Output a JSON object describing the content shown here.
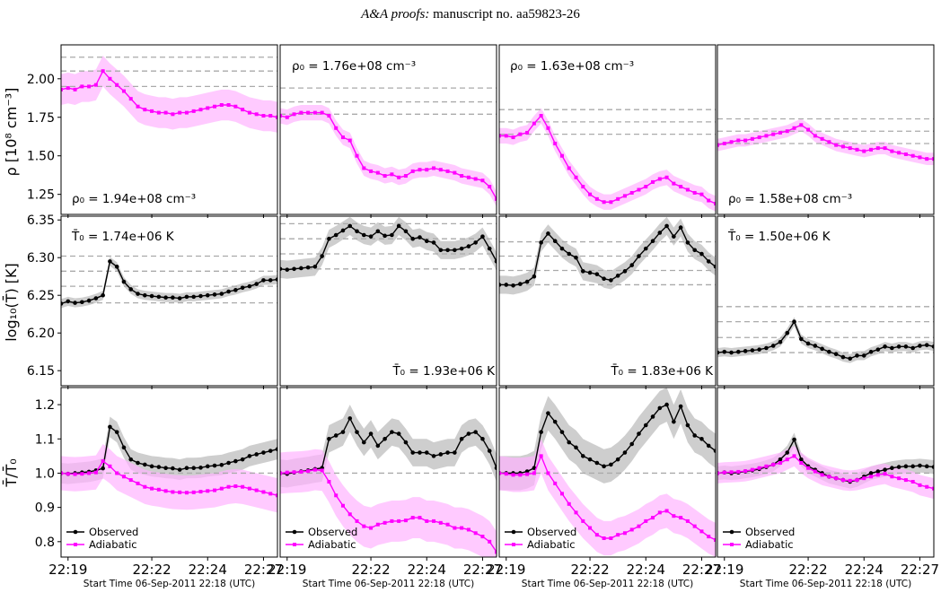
{
  "header": {
    "journal": "A&A proofs:",
    "manuscript": "manuscript no. aa59823-26"
  },
  "axes": {
    "ylabels": [
      "ρ [10⁸ cm⁻³]",
      "log₁₀(T̄) [K]",
      "T̄/T̄₀"
    ],
    "row_ticks": [
      {
        "values": [
          1.25,
          1.5,
          1.75,
          2.0
        ],
        "labels": [
          "1.25",
          "1.50",
          "1.75",
          "2.00"
        ]
      },
      {
        "values": [
          6.15,
          6.2,
          6.25,
          6.3,
          6.35
        ],
        "labels": [
          "6.15",
          "6.20",
          "6.25",
          "6.30",
          "6.35"
        ]
      },
      {
        "values": [
          0.8,
          0.9,
          1.0,
          1.1,
          1.2
        ],
        "labels": [
          "0.8",
          "0.9",
          "1.0",
          "1.1",
          "1.2"
        ]
      }
    ],
    "x_ticks": [
      "22:19",
      "22:22",
      "22:24",
      "22:27"
    ],
    "xlabel": "Start Time 06-Sep-2011 22:18 (UTC)"
  },
  "legend": {
    "observed": "Observed",
    "adiabatic": "Adiabatic"
  },
  "colors": {
    "observed": "#000000",
    "adiabatic": "#ff00ff",
    "obs_band": "#bdbdbd",
    "adi_band": "#ffb3ff",
    "dashed": "#aaaaaa"
  },
  "annotations": {
    "rho": [
      "ρ₀ = 1.94e+08 cm⁻³",
      "ρ₀ = 1.76e+08 cm⁻³",
      "ρ₀ = 1.63e+08 cm⁻³",
      "ρ₀ = 1.58e+08 cm⁻³"
    ],
    "temp": [
      "T̄₀ = 1.74e+06 K",
      "T̄₀ = 1.93e+06 K",
      "T̄₀ = 1.83e+06 K",
      "T̄₀ = 1.50e+06 K"
    ]
  },
  "chart_data": [
    {
      "type": "line",
      "panel": "density-col1",
      "ylim": [
        1.12,
        2.22
      ],
      "series": [
        {
          "values": [
            1.93,
            1.94,
            1.93,
            1.95,
            1.95,
            1.96,
            2.05,
            2.0,
            1.96,
            1.92,
            1.87,
            1.82,
            1.8,
            1.79,
            1.78,
            1.78,
            1.77,
            1.78,
            1.78,
            1.79,
            1.8,
            1.81,
            1.82,
            1.83,
            1.83,
            1.82,
            1.8,
            1.78,
            1.77,
            1.76,
            1.76,
            1.75
          ],
          "band": 0.1
        }
      ],
      "hlines": [
        1.95,
        2.05,
        2.14
      ]
    },
    {
      "type": "line",
      "panel": "density-col2",
      "ylim": [
        1.12,
        2.22
      ],
      "series": [
        {
          "values": [
            1.76,
            1.75,
            1.77,
            1.78,
            1.78,
            1.78,
            1.78,
            1.76,
            1.68,
            1.62,
            1.6,
            1.5,
            1.42,
            1.4,
            1.39,
            1.37,
            1.38,
            1.36,
            1.37,
            1.4,
            1.41,
            1.41,
            1.42,
            1.41,
            1.4,
            1.39,
            1.37,
            1.36,
            1.35,
            1.34,
            1.3,
            1.22
          ],
          "band": 0.05
        }
      ],
      "hlines": [
        1.77,
        1.85,
        1.94
      ]
    },
    {
      "type": "line",
      "panel": "density-col3",
      "ylim": [
        1.12,
        2.22
      ],
      "series": [
        {
          "values": [
            1.63,
            1.63,
            1.62,
            1.64,
            1.65,
            1.71,
            1.76,
            1.68,
            1.58,
            1.5,
            1.42,
            1.36,
            1.3,
            1.25,
            1.22,
            1.2,
            1.2,
            1.22,
            1.24,
            1.26,
            1.28,
            1.3,
            1.33,
            1.35,
            1.36,
            1.32,
            1.3,
            1.28,
            1.26,
            1.25,
            1.21,
            1.19
          ],
          "band": 0.05
        }
      ],
      "hlines": [
        1.64,
        1.72,
        1.8
      ]
    },
    {
      "type": "line",
      "panel": "density-col4",
      "ylim": [
        1.12,
        2.22
      ],
      "series": [
        {
          "values": [
            1.57,
            1.58,
            1.59,
            1.6,
            1.6,
            1.61,
            1.62,
            1.63,
            1.64,
            1.65,
            1.66,
            1.68,
            1.7,
            1.67,
            1.63,
            1.61,
            1.59,
            1.57,
            1.56,
            1.55,
            1.54,
            1.53,
            1.54,
            1.55,
            1.55,
            1.53,
            1.52,
            1.51,
            1.5,
            1.49,
            1.48,
            1.48
          ],
          "band": 0.04
        }
      ],
      "hlines": [
        1.58,
        1.66,
        1.74
      ]
    },
    {
      "type": "line",
      "panel": "temperature-col1",
      "ylim": [
        6.13,
        6.355
      ],
      "series": [
        {
          "values": [
            6.239,
            6.242,
            6.24,
            6.241,
            6.243,
            6.246,
            6.25,
            6.295,
            6.288,
            6.268,
            6.258,
            6.252,
            6.25,
            6.249,
            6.248,
            6.247,
            6.247,
            6.246,
            6.248,
            6.248,
            6.249,
            6.25,
            6.251,
            6.252,
            6.255,
            6.257,
            6.26,
            6.262,
            6.265,
            6.27,
            6.27,
            6.271
          ],
          "band": 0.006
        }
      ],
      "hlines": [
        6.24,
        6.262,
        6.282,
        6.302
      ]
    },
    {
      "type": "line",
      "panel": "temperature-col2",
      "ylim": [
        6.13,
        6.355
      ],
      "series": [
        {
          "values": [
            6.285,
            6.284,
            6.285,
            6.286,
            6.287,
            6.288,
            6.302,
            6.325,
            6.33,
            6.336,
            6.342,
            6.335,
            6.33,
            6.328,
            6.335,
            6.329,
            6.33,
            6.342,
            6.335,
            6.325,
            6.327,
            6.322,
            6.32,
            6.31,
            6.31,
            6.31,
            6.312,
            6.315,
            6.32,
            6.328,
            6.312,
            6.295
          ],
          "band": 0.012
        }
      ],
      "hlines": [
        6.285,
        6.305,
        6.325,
        6.345
      ]
    },
    {
      "type": "line",
      "panel": "temperature-col3",
      "ylim": [
        6.13,
        6.355
      ],
      "series": [
        {
          "values": [
            6.264,
            6.264,
            6.263,
            6.265,
            6.268,
            6.275,
            6.32,
            6.332,
            6.322,
            6.312,
            6.305,
            6.3,
            6.282,
            6.28,
            6.278,
            6.272,
            6.27,
            6.276,
            6.282,
            6.29,
            6.302,
            6.312,
            6.322,
            6.333,
            6.342,
            6.328,
            6.34,
            6.32,
            6.31,
            6.305,
            6.295,
            6.288
          ],
          "band": 0.012
        }
      ],
      "hlines": [
        6.264,
        6.283,
        6.302,
        6.321
      ]
    },
    {
      "type": "line",
      "panel": "temperature-col4",
      "ylim": [
        6.13,
        6.355
      ],
      "series": [
        {
          "values": [
            6.174,
            6.175,
            6.174,
            6.175,
            6.176,
            6.177,
            6.178,
            6.18,
            6.183,
            6.188,
            6.2,
            6.215,
            6.192,
            6.186,
            6.183,
            6.179,
            6.175,
            6.172,
            6.168,
            6.166,
            6.17,
            6.17,
            6.175,
            6.178,
            6.182,
            6.18,
            6.182,
            6.182,
            6.18,
            6.183,
            6.184,
            6.182
          ],
          "band": 0.006
        }
      ],
      "hlines": [
        6.174,
        6.194,
        6.215,
        6.235
      ]
    },
    {
      "type": "line",
      "panel": "ratio-col1",
      "ylim": [
        0.755,
        1.25
      ],
      "series": [
        {
          "name": "Observed",
          "values": [
            1.0,
            0.998,
            1.0,
            1.002,
            1.004,
            1.008,
            1.014,
            1.135,
            1.12,
            1.075,
            1.04,
            1.03,
            1.025,
            1.02,
            1.018,
            1.015,
            1.014,
            1.01,
            1.015,
            1.015,
            1.016,
            1.02,
            1.022,
            1.024,
            1.03,
            1.035,
            1.04,
            1.05,
            1.055,
            1.06,
            1.065,
            1.07
          ],
          "band": 0.03
        },
        {
          "name": "Adiabatic",
          "values": [
            1.0,
            0.998,
            0.997,
            0.998,
            1.0,
            1.002,
            1.035,
            1.02,
            1.0,
            0.99,
            0.98,
            0.97,
            0.96,
            0.955,
            0.952,
            0.948,
            0.945,
            0.944,
            0.943,
            0.944,
            0.946,
            0.948,
            0.95,
            0.955,
            0.96,
            0.962,
            0.96,
            0.955,
            0.95,
            0.945,
            0.94,
            0.935
          ],
          "band": 0.05
        }
      ],
      "hlines": [
        1.0
      ]
    },
    {
      "type": "line",
      "panel": "ratio-col2",
      "ylim": [
        0.755,
        1.25
      ],
      "series": [
        {
          "name": "Observed",
          "values": [
            1.0,
            0.998,
            1.002,
            1.005,
            1.008,
            1.012,
            1.015,
            1.1,
            1.11,
            1.12,
            1.16,
            1.12,
            1.09,
            1.115,
            1.08,
            1.1,
            1.12,
            1.115,
            1.09,
            1.06,
            1.06,
            1.06,
            1.05,
            1.055,
            1.06,
            1.06,
            1.1,
            1.115,
            1.12,
            1.1,
            1.065,
            1.015
          ],
          "band": 0.04
        },
        {
          "name": "Adiabatic",
          "values": [
            1.0,
            1.002,
            1.003,
            1.004,
            1.006,
            1.01,
            1.008,
            0.975,
            0.935,
            0.905,
            0.88,
            0.86,
            0.845,
            0.84,
            0.85,
            0.855,
            0.86,
            0.86,
            0.862,
            0.87,
            0.87,
            0.86,
            0.86,
            0.855,
            0.85,
            0.84,
            0.84,
            0.835,
            0.825,
            0.815,
            0.8,
            0.77
          ],
          "band": 0.06
        }
      ],
      "hlines": [
        1.0
      ]
    },
    {
      "type": "line",
      "panel": "ratio-col3",
      "ylim": [
        0.755,
        1.25
      ],
      "series": [
        {
          "name": "Observed",
          "values": [
            1.0,
            1.0,
            1.0,
            1.0,
            1.005,
            1.015,
            1.12,
            1.175,
            1.15,
            1.12,
            1.09,
            1.075,
            1.05,
            1.04,
            1.03,
            1.02,
            1.025,
            1.04,
            1.06,
            1.085,
            1.115,
            1.14,
            1.165,
            1.19,
            1.2,
            1.15,
            1.195,
            1.14,
            1.11,
            1.1,
            1.08,
            1.065
          ],
          "band": 0.05
        },
        {
          "name": "Adiabatic",
          "values": [
            1.0,
            0.998,
            0.995,
            0.995,
            0.997,
            1.0,
            1.05,
            1.0,
            0.97,
            0.94,
            0.91,
            0.885,
            0.86,
            0.84,
            0.82,
            0.81,
            0.81,
            0.82,
            0.825,
            0.835,
            0.845,
            0.86,
            0.87,
            0.885,
            0.89,
            0.875,
            0.87,
            0.86,
            0.845,
            0.83,
            0.815,
            0.805
          ],
          "band": 0.05
        }
      ],
      "hlines": [
        1.0
      ]
    },
    {
      "type": "line",
      "panel": "ratio-col4",
      "ylim": [
        0.755,
        1.25
      ],
      "series": [
        {
          "name": "Observed",
          "values": [
            1.0,
            1.002,
            1.0,
            1.002,
            1.005,
            1.008,
            1.012,
            1.018,
            1.025,
            1.04,
            1.06,
            1.098,
            1.04,
            1.02,
            1.01,
            1.0,
            0.99,
            0.985,
            0.98,
            0.975,
            0.98,
            0.99,
            1.0,
            1.005,
            1.01,
            1.015,
            1.018,
            1.02,
            1.02,
            1.022,
            1.02,
            1.018
          ],
          "band": 0.02
        },
        {
          "name": "Adiabatic",
          "values": [
            1.0,
            1.002,
            1.003,
            1.004,
            1.006,
            1.01,
            1.015,
            1.02,
            1.025,
            1.03,
            1.04,
            1.05,
            1.03,
            1.015,
            1.005,
            0.995,
            0.99,
            0.985,
            0.98,
            0.978,
            0.98,
            0.985,
            0.99,
            0.995,
            0.998,
            0.99,
            0.985,
            0.98,
            0.975,
            0.965,
            0.96,
            0.955
          ],
          "band": 0.03
        }
      ],
      "hlines": [
        1.0
      ]
    }
  ]
}
